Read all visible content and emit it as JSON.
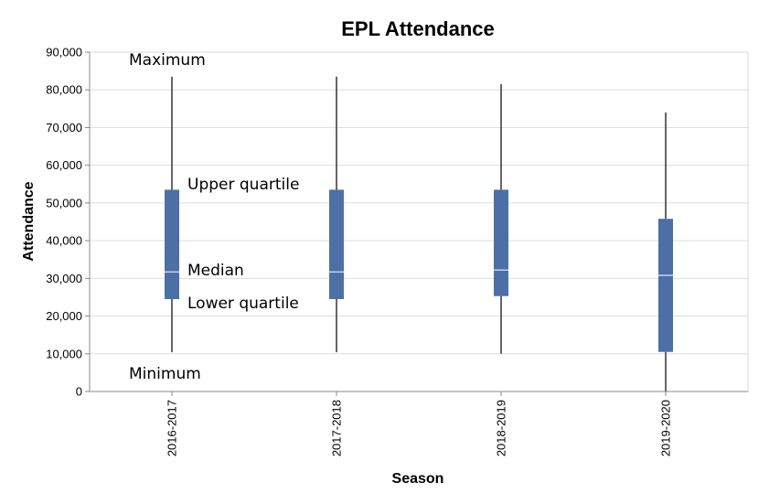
{
  "chart_data": {
    "type": "boxplot",
    "title": "EPL Attendance",
    "xlabel": "Season",
    "ylabel": "Attendance",
    "ylim": [
      0,
      90000
    ],
    "yticks": [
      0,
      10000,
      20000,
      30000,
      40000,
      50000,
      60000,
      70000,
      80000,
      90000
    ],
    "ytick_labels": [
      "0",
      "10,000",
      "20,000",
      "30,000",
      "40,000",
      "50,000",
      "60,000",
      "70,000",
      "80,000",
      "90,000"
    ],
    "grid": true,
    "box_color": "#4c6fa5",
    "median_color": "#c6d3e6",
    "whisker_color": "#333333",
    "categories": [
      "2016-2017",
      "2017-2018",
      "2018-2019",
      "2019-2020"
    ],
    "boxes": [
      {
        "min": 10400,
        "q1": 24500,
        "median": 31700,
        "q3": 53500,
        "max": 83500
      },
      {
        "min": 10400,
        "q1": 24500,
        "median": 31700,
        "q3": 53500,
        "max": 83500
      },
      {
        "min": 10000,
        "q1": 25300,
        "median": 32200,
        "q3": 53500,
        "max": 81500
      },
      {
        "min": 0,
        "q1": 10500,
        "median": 30800,
        "q3": 45800,
        "max": 74000
      }
    ],
    "annotations": [
      {
        "text": "Maximum"
      },
      {
        "text": "Upper quartile"
      },
      {
        "text": "Median"
      },
      {
        "text": "Lower quartile"
      },
      {
        "text": "Minimum"
      }
    ]
  }
}
